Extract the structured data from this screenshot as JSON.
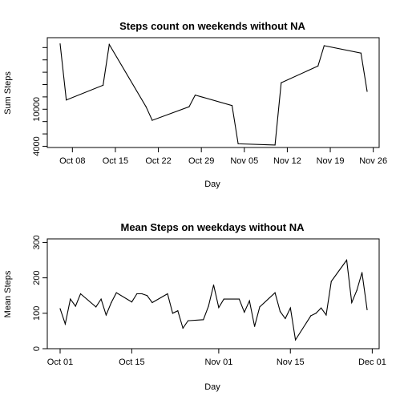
{
  "chart_data": [
    {
      "type": "line",
      "title": "Steps count on weekends without NA",
      "xlabel": "Day",
      "ylabel": "Sum Steps",
      "x_ticks": [
        "Oct 08",
        "Oct 15",
        "Oct 22",
        "Oct 29",
        "Nov 05",
        "Nov 12",
        "Nov 19",
        "Nov 26"
      ],
      "y_ticks": [
        4000,
        10000
      ],
      "ylim": [
        3800,
        21600
      ],
      "xlim": [
        "2012-10-06",
        "2012-11-25"
      ],
      "x": [
        "2012-10-06",
        "2012-10-07",
        "2012-10-13",
        "2012-10-14",
        "2012-10-20",
        "2012-10-21",
        "2012-10-27",
        "2012-10-28",
        "2012-11-03",
        "2012-11-04",
        "2012-11-10",
        "2012-11-11",
        "2012-11-17",
        "2012-11-18",
        "2012-11-24",
        "2012-11-25"
      ],
      "values": [
        20600,
        11500,
        13900,
        20500,
        10400,
        8200,
        10400,
        12300,
        10600,
        4400,
        4200,
        14300,
        17000,
        20300,
        19100,
        12900
      ]
    },
    {
      "type": "line",
      "title": "Mean Steps on weekdays without NA",
      "xlabel": "Day",
      "ylabel": "Mean Steps",
      "x_ticks": [
        "Oct 01",
        "Oct 15",
        "Nov 01",
        "Nov 15",
        "Dec 01"
      ],
      "y_ticks": [
        0,
        100,
        200,
        300
      ],
      "ylim": [
        0,
        310
      ],
      "xlim": [
        "2012-10-01",
        "2012-11-30"
      ],
      "x": [
        "2012-10-01",
        "2012-10-02",
        "2012-10-03",
        "2012-10-04",
        "2012-10-05",
        "2012-10-08",
        "2012-10-09",
        "2012-10-10",
        "2012-10-11",
        "2012-10-12",
        "2012-10-15",
        "2012-10-16",
        "2012-10-17",
        "2012-10-18",
        "2012-10-19",
        "2012-10-22",
        "2012-10-23",
        "2012-10-24",
        "2012-10-25",
        "2012-10-26",
        "2012-10-29",
        "2012-10-30",
        "2012-10-31",
        "2012-11-01",
        "2012-11-02",
        "2012-11-05",
        "2012-11-06",
        "2012-11-07",
        "2012-11-08",
        "2012-11-09",
        "2012-11-12",
        "2012-11-13",
        "2012-11-14",
        "2012-11-15",
        "2012-11-16",
        "2012-11-19",
        "2012-11-20",
        "2012-11-21",
        "2012-11-22",
        "2012-11-23",
        "2012-11-26",
        "2012-11-27",
        "2012-11-28",
        "2012-11-29",
        "2012-11-30"
      ],
      "values": [
        113,
        70,
        140,
        120,
        155,
        118,
        140,
        95,
        130,
        158,
        132,
        155,
        155,
        150,
        130,
        155,
        100,
        107,
        58,
        79,
        82,
        120,
        180,
        116,
        140,
        140,
        103,
        135,
        63,
        118,
        158,
        105,
        85,
        115,
        25,
        93,
        100,
        115,
        95,
        190,
        250,
        130,
        165,
        215,
        110
      ]
    }
  ]
}
